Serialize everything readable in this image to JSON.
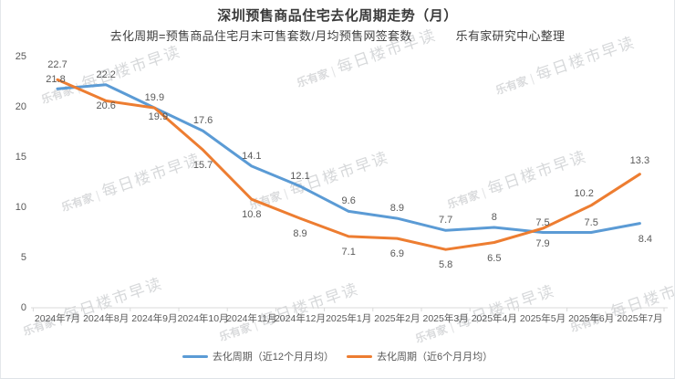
{
  "title": "深圳预售商品住宅去化周期走势（月）",
  "subtitle": {
    "formula": "去化周期=预售商品住宅月末可售套数/月均预售网签套数",
    "source": "乐有家研究中心整理"
  },
  "watermark": {
    "brand": "乐有家",
    "text": "每日楼市早读"
  },
  "colors": {
    "series_blue": "#5B9BD5",
    "series_orange": "#ED7D31",
    "axis_line": "#D9D9D9",
    "label_text": "#595959",
    "title_text": "#3A3A3A"
  },
  "chart_data": {
    "type": "line",
    "title": "深圳预售商品住宅去化周期走势（月）",
    "xlabel": "",
    "ylabel": "",
    "categories": [
      "2024年7月",
      "2024年8月",
      "2024年9月",
      "2024年10月",
      "2024年11月",
      "2024年12月",
      "2025年1月",
      "2025年2月",
      "2025年3月",
      "2025年4月",
      "2025年5月",
      "2025年6月",
      "2025年7月"
    ],
    "series": [
      {
        "name": "去化周期（近12个月月均）",
        "color": "#5B9BD5",
        "values": [
          21.8,
          22.2,
          19.9,
          17.6,
          14.1,
          12.1,
          9.6,
          8.9,
          7.7,
          8,
          7.5,
          7.5,
          8.4
        ]
      },
      {
        "name": "去化周期（近6个月月均）",
        "color": "#ED7D31",
        "values": [
          22.7,
          20.6,
          19.9,
          15.7,
          10.8,
          8.9,
          7.1,
          6.9,
          5.8,
          6.5,
          7.9,
          10.2,
          13.3
        ]
      }
    ],
    "y_ticks": [
      0,
      5,
      10,
      15,
      20,
      25
    ],
    "ylim": [
      0,
      25
    ],
    "grid": false,
    "legend_position": "bottom",
    "data_labels": true
  }
}
